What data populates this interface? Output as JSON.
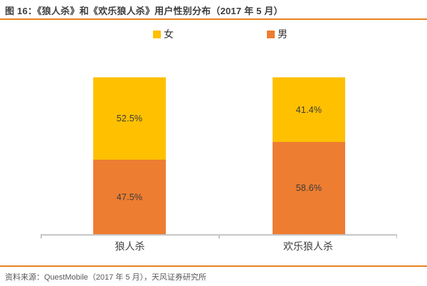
{
  "title": "图 16：《狼人杀》和《欢乐狼人杀》用户性别分布（2017 年 5 月）",
  "source": "资料来源：QuestMobile（2017 年 5 月），天风证券研究所",
  "colors": {
    "female": "#FFC000",
    "male": "#ED7D31",
    "rule_line": "#E8821E",
    "axis_line": "#C6C6C6",
    "title_text": "#3D3D3D",
    "muted_text": "#595959"
  },
  "legend": [
    {
      "label": "女",
      "color": "#FFC000"
    },
    {
      "label": "男",
      "color": "#ED7D31"
    }
  ],
  "chart_data": {
    "type": "bar",
    "stacked": true,
    "orientation": "vertical",
    "categories": [
      "狼人杀",
      "欢乐狼人杀"
    ],
    "series": [
      {
        "name": "女",
        "color": "#FFC000",
        "values": [
          52.5,
          41.4
        ],
        "labels": [
          "52.5%",
          "41.4%"
        ]
      },
      {
        "name": "男",
        "color": "#ED7D31",
        "values": [
          47.5,
          58.6
        ],
        "labels": [
          "47.5%",
          "58.6%"
        ]
      }
    ],
    "ylim": [
      0,
      100
    ],
    "unit": "%",
    "grid": false,
    "y_axis_visible": false,
    "legend_position": "top"
  }
}
